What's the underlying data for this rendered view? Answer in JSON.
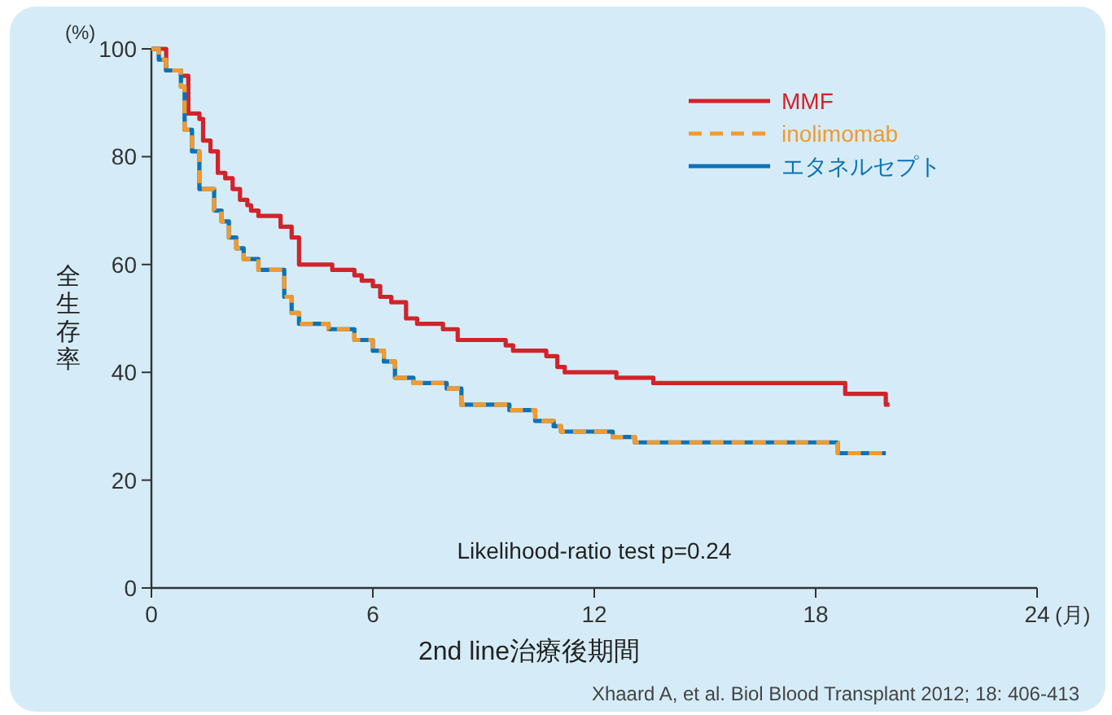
{
  "chart_data": {
    "type": "step",
    "xlabel": "2nd line治療後期間",
    "ylabel": "全生存率",
    "annotations": [
      "(%)",
      "(月)",
      "Likelihood-ratio test p=0.24",
      "Xhaard A, et al. Biol Blood Transplant 2012; 18: 406-413"
    ],
    "xlim": [
      0,
      24
    ],
    "xticks": [
      0,
      6,
      12,
      18,
      24
    ],
    "ylim": [
      0,
      100
    ],
    "yticks": [
      0,
      20,
      40,
      60,
      80,
      100
    ],
    "grid": false,
    "legend": "top right",
    "series": [
      {
        "name": "MMF",
        "color": "#d2232a",
        "line_style": "solid",
        "x": [
          0,
          0.4,
          0.8,
          1.0,
          1.3,
          1.4,
          1.6,
          1.8,
          2.0,
          2.2,
          2.4,
          2.6,
          2.7,
          2.9,
          3.5,
          3.8,
          4.0,
          4.9,
          5.5,
          5.7,
          6.0,
          6.2,
          6.5,
          6.9,
          7.2,
          7.9,
          8.3,
          9.6,
          9.8,
          10.7,
          11.0,
          11.2,
          12.6,
          13.6,
          18.8,
          19.9,
          20.0
        ],
        "values": [
          100,
          96,
          95,
          88,
          87,
          83,
          81,
          77,
          76,
          74,
          72,
          71,
          70,
          69,
          67,
          65,
          60,
          59,
          58,
          57,
          56,
          54,
          53,
          50,
          49,
          48,
          46,
          45,
          44,
          43,
          41,
          40,
          39,
          38,
          36,
          34,
          34
        ]
      },
      {
        "name": "inolimomab",
        "color": "#f29a2e",
        "line_style": "dashed",
        "x": [
          0,
          0.2,
          0.4,
          0.8,
          0.9,
          1.1,
          1.3,
          1.7,
          1.9,
          2.1,
          2.3,
          2.5,
          2.9,
          3.6,
          3.8,
          4.0,
          4.8,
          5.5,
          6.0,
          6.3,
          6.6,
          7.1,
          8.0,
          8.4,
          9.7,
          10.4,
          10.9,
          11.1,
          12.5,
          13.1,
          13.7,
          18.6,
          19.7,
          19.9
        ],
        "values": [
          100,
          98,
          96,
          93,
          85,
          81,
          74,
          70,
          68,
          65,
          63,
          61,
          59,
          54,
          51,
          49,
          48,
          46,
          44,
          42,
          39,
          38,
          37,
          34,
          33,
          31,
          30,
          29,
          28,
          27,
          27,
          25,
          25,
          25
        ]
      },
      {
        "name": "エタネルセプト",
        "color": "#0a72b9",
        "line_style": "solid",
        "x": [
          0,
          0.2,
          0.4,
          0.8,
          0.9,
          1.1,
          1.3,
          1.7,
          1.9,
          2.1,
          2.3,
          2.5,
          2.9,
          3.6,
          3.8,
          4.0,
          4.8,
          5.5,
          6.0,
          6.3,
          6.6,
          7.1,
          8.0,
          8.4,
          9.7,
          10.4,
          10.9,
          11.1,
          12.5,
          13.1,
          13.7,
          18.6,
          19.7,
          19.9
        ],
        "values": [
          100,
          98,
          96,
          93,
          85,
          81,
          74,
          70,
          68,
          65,
          63,
          61,
          59,
          54,
          51,
          49,
          48,
          46,
          44,
          42,
          39,
          38,
          37,
          34,
          33,
          31,
          30,
          29,
          28,
          27,
          27,
          25,
          25,
          25
        ]
      }
    ]
  }
}
